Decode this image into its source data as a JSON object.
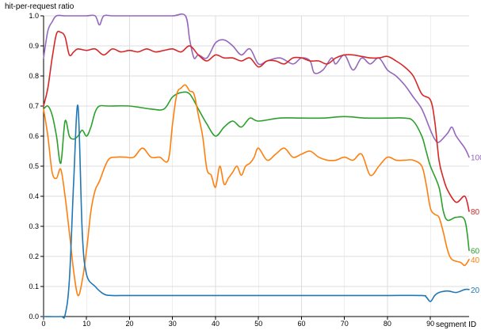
{
  "chart_data": {
    "type": "line",
    "title": "",
    "ylabel": "hit-per-request ratio",
    "xlabel": "segment ID",
    "xlim": [
      0,
      99
    ],
    "ylim": [
      0,
      1
    ],
    "xticks": [
      0,
      10,
      20,
      30,
      40,
      50,
      60,
      70,
      80,
      90
    ],
    "yticks": [
      0.0,
      0.1,
      0.2,
      0.3,
      0.4,
      0.5,
      0.6,
      0.7,
      0.8,
      0.9,
      1.0
    ],
    "ytick_labels": [
      "0.0",
      "0.1",
      "0.2",
      "0.3",
      "0.4",
      "0.5",
      "0.6",
      "0.7",
      "0.8",
      "0.9",
      "1.0"
    ],
    "grid": true,
    "legend": "series labels at right end of lines",
    "series": [
      {
        "name": "100",
        "color": "#9467bd",
        "x": [
          0,
          1,
          2,
          3,
          5,
          8,
          10,
          12,
          13,
          14,
          16,
          20,
          25,
          30,
          33,
          34,
          35,
          36,
          38,
          40,
          42,
          44,
          46,
          48,
          50,
          52,
          55,
          58,
          60,
          62,
          63,
          65,
          67,
          68,
          70,
          72,
          74,
          76,
          78,
          80,
          82,
          84,
          86,
          88,
          90,
          91,
          92,
          94,
          95,
          96,
          98,
          99
        ],
        "y": [
          0.86,
          0.95,
          0.98,
          1.0,
          1.0,
          1.0,
          1.0,
          1.0,
          0.97,
          1.0,
          1.0,
          1.0,
          1.0,
          1.0,
          1.0,
          0.92,
          0.86,
          0.87,
          0.86,
          0.91,
          0.92,
          0.9,
          0.87,
          0.89,
          0.84,
          0.85,
          0.86,
          0.84,
          0.86,
          0.85,
          0.81,
          0.82,
          0.86,
          0.84,
          0.87,
          0.82,
          0.86,
          0.84,
          0.86,
          0.82,
          0.8,
          0.77,
          0.73,
          0.69,
          0.62,
          0.59,
          0.58,
          0.61,
          0.63,
          0.6,
          0.56,
          0.53
        ]
      },
      {
        "name": "80",
        "color": "#d62728",
        "x": [
          0,
          1,
          2,
          3,
          4,
          5,
          6,
          7,
          8,
          10,
          12,
          14,
          16,
          18,
          20,
          22,
          24,
          26,
          28,
          30,
          32,
          34,
          36,
          38,
          40,
          42,
          44,
          46,
          48,
          50,
          52,
          54,
          56,
          58,
          60,
          62,
          64,
          66,
          68,
          70,
          72,
          74,
          76,
          78,
          80,
          82,
          84,
          86,
          88,
          90,
          91,
          92,
          93,
          94,
          96,
          98,
          99
        ],
        "y": [
          0.7,
          0.76,
          0.86,
          0.94,
          0.945,
          0.93,
          0.87,
          0.88,
          0.89,
          0.885,
          0.89,
          0.87,
          0.89,
          0.88,
          0.885,
          0.88,
          0.89,
          0.88,
          0.885,
          0.89,
          0.88,
          0.9,
          0.87,
          0.85,
          0.87,
          0.86,
          0.86,
          0.85,
          0.86,
          0.83,
          0.85,
          0.85,
          0.84,
          0.86,
          0.86,
          0.85,
          0.85,
          0.84,
          0.86,
          0.87,
          0.87,
          0.865,
          0.86,
          0.86,
          0.865,
          0.85,
          0.83,
          0.8,
          0.74,
          0.72,
          0.65,
          0.52,
          0.46,
          0.42,
          0.38,
          0.4,
          0.35
        ]
      },
      {
        "name": "60",
        "color": "#2ca02c",
        "x": [
          0,
          1,
          2,
          3,
          4,
          5,
          6,
          7,
          8,
          9,
          10,
          11,
          12,
          13,
          15,
          20,
          25,
          28,
          30,
          32,
          34,
          36,
          38,
          40,
          42,
          44,
          46,
          48,
          50,
          55,
          60,
          65,
          70,
          75,
          80,
          84,
          86,
          88,
          89,
          90,
          92,
          93,
          94,
          96,
          98,
          99
        ],
        "y": [
          0.69,
          0.7,
          0.67,
          0.6,
          0.51,
          0.65,
          0.6,
          0.59,
          0.6,
          0.62,
          0.6,
          0.63,
          0.68,
          0.7,
          0.7,
          0.7,
          0.69,
          0.69,
          0.73,
          0.745,
          0.74,
          0.69,
          0.64,
          0.6,
          0.63,
          0.65,
          0.63,
          0.66,
          0.65,
          0.66,
          0.66,
          0.66,
          0.665,
          0.66,
          0.66,
          0.66,
          0.65,
          0.6,
          0.55,
          0.5,
          0.43,
          0.35,
          0.32,
          0.33,
          0.32,
          0.22
        ]
      },
      {
        "name": "40",
        "color": "#ff7f0e",
        "x": [
          0,
          1,
          2,
          3,
          4,
          5,
          6,
          7,
          8,
          9,
          10,
          11,
          12,
          13,
          15,
          17,
          19,
          21,
          23,
          25,
          27,
          29,
          30,
          31,
          32,
          33,
          34,
          35,
          36,
          37,
          38,
          39,
          40,
          41,
          42,
          43,
          44,
          45,
          46,
          47,
          48,
          49,
          50,
          52,
          54,
          56,
          58,
          60,
          62,
          64,
          66,
          68,
          70,
          72,
          74,
          76,
          78,
          80,
          82,
          84,
          86,
          88,
          89,
          90,
          91,
          92,
          93,
          94,
          95,
          97,
          98,
          99
        ],
        "y": [
          0.69,
          0.6,
          0.48,
          0.46,
          0.49,
          0.4,
          0.28,
          0.15,
          0.07,
          0.12,
          0.22,
          0.35,
          0.42,
          0.45,
          0.52,
          0.53,
          0.53,
          0.53,
          0.56,
          0.53,
          0.53,
          0.52,
          0.64,
          0.74,
          0.76,
          0.77,
          0.75,
          0.74,
          0.67,
          0.6,
          0.49,
          0.47,
          0.43,
          0.5,
          0.44,
          0.46,
          0.48,
          0.5,
          0.47,
          0.5,
          0.51,
          0.53,
          0.56,
          0.52,
          0.54,
          0.56,
          0.53,
          0.54,
          0.55,
          0.53,
          0.52,
          0.52,
          0.53,
          0.52,
          0.54,
          0.47,
          0.5,
          0.53,
          0.52,
          0.52,
          0.52,
          0.5,
          0.44,
          0.36,
          0.34,
          0.33,
          0.28,
          0.22,
          0.19,
          0.18,
          0.17,
          0.19
        ]
      },
      {
        "name": "20",
        "color": "#1f77b4",
        "x": [
          0,
          4,
          5,
          6,
          7,
          8,
          9,
          10,
          12,
          14,
          16,
          20,
          30,
          40,
          50,
          60,
          70,
          80,
          88,
          89,
          90,
          91,
          92,
          94,
          96,
          98,
          99
        ],
        "y": [
          0.0,
          0.0,
          0.005,
          0.12,
          0.45,
          0.7,
          0.28,
          0.14,
          0.1,
          0.075,
          0.07,
          0.07,
          0.07,
          0.07,
          0.07,
          0.07,
          0.07,
          0.07,
          0.07,
          0.065,
          0.05,
          0.07,
          0.08,
          0.085,
          0.08,
          0.09,
          0.09
        ]
      }
    ]
  }
}
